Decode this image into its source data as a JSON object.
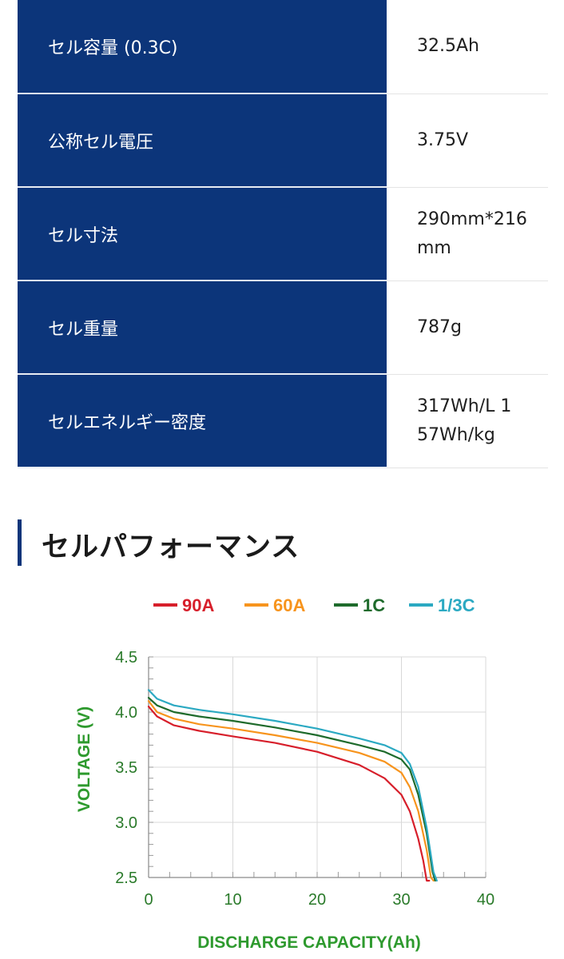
{
  "spec_table": {
    "rows": [
      {
        "label": "セル容量 (0.3C)",
        "value_lines": [
          "32.5Ah"
        ]
      },
      {
        "label": "公称セル電圧",
        "value_lines": [
          "3.75V"
        ]
      },
      {
        "label": "セル寸法",
        "value_lines": [
          "290mm*216",
          "mm"
        ]
      },
      {
        "label": "セル重量",
        "value_lines": [
          "787g"
        ]
      },
      {
        "label": "セルエネルギー密度",
        "value_lines": [
          "317Wh/L 1",
          "57Wh/kg"
        ]
      }
    ]
  },
  "section": {
    "title": "セルパフォーマンス"
  },
  "colors": {
    "brand_navy": "#0c357a",
    "axis_green": "#2e9a2e"
  },
  "chart_data": {
    "type": "line",
    "xlabel": "DISCHARGE CAPACITY(Ah)",
    "ylabel": "VOLTAGE (V)",
    "xlim": [
      0,
      40
    ],
    "ylim": [
      2.5,
      4.5
    ],
    "xticks": [
      "0",
      "10",
      "20",
      "30",
      "40"
    ],
    "yticks": [
      "2.5",
      "3.0",
      "3.5",
      "4.0",
      "4.5"
    ],
    "grid": true,
    "legend_position": "top",
    "series": [
      {
        "name": "90A",
        "color": "#d71f2b",
        "x": [
          0,
          1,
          3,
          6,
          10,
          15,
          20,
          25,
          28,
          30,
          31,
          32,
          32.6,
          33.0,
          33.3
        ],
        "y": [
          4.05,
          3.96,
          3.88,
          3.83,
          3.78,
          3.72,
          3.64,
          3.52,
          3.4,
          3.25,
          3.1,
          2.85,
          2.65,
          2.45,
          2.38
        ]
      },
      {
        "name": "60A",
        "color": "#f7941d",
        "x": [
          0,
          1,
          3,
          6,
          10,
          15,
          20,
          25,
          28,
          30,
          31,
          32,
          33,
          33.5,
          33.8
        ],
        "y": [
          4.1,
          4.0,
          3.94,
          3.89,
          3.85,
          3.79,
          3.72,
          3.63,
          3.55,
          3.45,
          3.32,
          3.1,
          2.75,
          2.5,
          2.38
        ]
      },
      {
        "name": "1C",
        "color": "#1f6b2c",
        "x": [
          0,
          1,
          3,
          6,
          10,
          15,
          20,
          25,
          28,
          30,
          31,
          32,
          33,
          33.7,
          34.0
        ],
        "y": [
          4.13,
          4.06,
          4.0,
          3.96,
          3.92,
          3.86,
          3.79,
          3.7,
          3.64,
          3.57,
          3.48,
          3.25,
          2.9,
          2.55,
          2.38
        ]
      },
      {
        "name": "1/3C",
        "color": "#2ba9c2",
        "x": [
          0,
          1,
          3,
          6,
          10,
          15,
          20,
          25,
          28,
          30,
          31,
          32,
          33,
          33.8,
          34.2
        ],
        "y": [
          4.2,
          4.12,
          4.06,
          4.02,
          3.98,
          3.92,
          3.85,
          3.76,
          3.7,
          3.63,
          3.53,
          3.32,
          2.95,
          2.55,
          2.38
        ]
      }
    ]
  }
}
